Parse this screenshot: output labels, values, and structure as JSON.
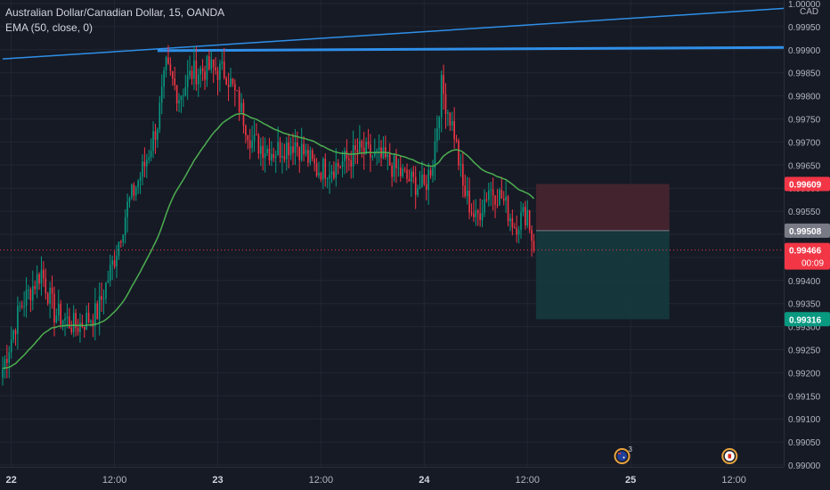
{
  "legend": {
    "symbol_line": "Australian Dollar/Canadian Dollar, 15, OANDA",
    "indicator_line": "EMA (50, close, 0)"
  },
  "price_axis": {
    "currency": "CAD",
    "ticks": [
      "1.00000",
      "0.99950",
      "0.99900",
      "0.99850",
      "0.99800",
      "0.99750",
      "0.99700",
      "0.99650",
      "0.99600",
      "0.99550",
      "0.99500",
      "0.99450",
      "0.99400",
      "0.99350",
      "0.99300",
      "0.99250",
      "0.99200",
      "0.99150",
      "0.99100",
      "0.99050",
      "0.99000"
    ],
    "labels": [
      {
        "text": "0.99609",
        "value": 0.99609,
        "color": "#f23645"
      },
      {
        "text": "0.99508",
        "value": 0.99508,
        "color": "#787b86"
      },
      {
        "text": "0.99466",
        "value": 0.99466,
        "color": "#f23645"
      },
      {
        "text": "0.99316",
        "value": 0.99316,
        "color": "#089981"
      }
    ],
    "countdown": "00:09"
  },
  "time_axis": {
    "ticks": [
      {
        "label": "22",
        "index": 4,
        "bold": true
      },
      {
        "label": "12:00",
        "index": 52
      },
      {
        "label": "23",
        "index": 100,
        "bold": true
      },
      {
        "label": "12:00",
        "index": 148
      },
      {
        "label": "24",
        "index": 196,
        "bold": true
      },
      {
        "label": "12:00",
        "index": 244
      },
      {
        "label": "25",
        "index": 292,
        "bold": true
      },
      {
        "label": "12:00",
        "index": 340
      }
    ]
  },
  "events": [
    {
      "name": "australia-flag-icon",
      "index": 288,
      "badge": "3"
    },
    {
      "name": "canada-flag-icon",
      "index": 338,
      "badge": ""
    }
  ],
  "colors": {
    "up": "#089981",
    "down": "#f23645",
    "ema": "#4caf50",
    "trendline": "#2f8fe8",
    "sl_zone": "#4a2630",
    "tp_zone": "#153b3e",
    "grid": "#222633"
  },
  "chart_data": {
    "type": "candlestick",
    "symbol": "AUDCAD",
    "interval": "15",
    "ylim": [
      0.99,
      1.0
    ],
    "last_price": 0.99466,
    "ema_period": 50,
    "trendlines": [
      {
        "from": {
          "index": 0,
          "price": 0.9988
        },
        "to": {
          "index": 365,
          "price": 0.9999
        }
      },
      {
        "from": {
          "index": 72,
          "price": 0.99898
        },
        "to": {
          "index": 365,
          "price": 0.99905
        }
      }
    ],
    "position_short": {
      "entry": 0.99508,
      "stop": 0.99609,
      "target": 0.99316,
      "from_index": 248,
      "to_index": 310
    },
    "price_path": [
      {
        "i": 0,
        "p": 0.9921
      },
      {
        "i": 8,
        "p": 0.9934
      },
      {
        "i": 18,
        "p": 0.9942
      },
      {
        "i": 24,
        "p": 0.9933
      },
      {
        "i": 34,
        "p": 0.993
      },
      {
        "i": 44,
        "p": 0.9933
      },
      {
        "i": 52,
        "p": 0.9945
      },
      {
        "i": 58,
        "p": 0.9956
      },
      {
        "i": 66,
        "p": 0.9965
      },
      {
        "i": 72,
        "p": 0.9974
      },
      {
        "i": 76,
        "p": 0.9986
      },
      {
        "i": 82,
        "p": 0.998
      },
      {
        "i": 88,
        "p": 0.9985
      },
      {
        "i": 96,
        "p": 0.9986
      },
      {
        "i": 104,
        "p": 0.9985
      },
      {
        "i": 110,
        "p": 0.9978
      },
      {
        "i": 116,
        "p": 0.997
      },
      {
        "i": 126,
        "p": 0.9968
      },
      {
        "i": 136,
        "p": 0.997
      },
      {
        "i": 146,
        "p": 0.9964
      },
      {
        "i": 156,
        "p": 0.9965
      },
      {
        "i": 166,
        "p": 0.9968
      },
      {
        "i": 178,
        "p": 0.9966
      },
      {
        "i": 188,
        "p": 0.9962
      },
      {
        "i": 196,
        "p": 0.996
      },
      {
        "i": 200,
        "p": 0.9966
      },
      {
        "i": 204,
        "p": 0.9982
      },
      {
        "i": 210,
        "p": 0.9972
      },
      {
        "i": 214,
        "p": 0.996
      },
      {
        "i": 220,
        "p": 0.9953
      },
      {
        "i": 226,
        "p": 0.996
      },
      {
        "i": 232,
        "p": 0.9958
      },
      {
        "i": 238,
        "p": 0.9952
      },
      {
        "i": 244,
        "p": 0.9955
      },
      {
        "i": 247,
        "p": 0.99466
      }
    ]
  }
}
